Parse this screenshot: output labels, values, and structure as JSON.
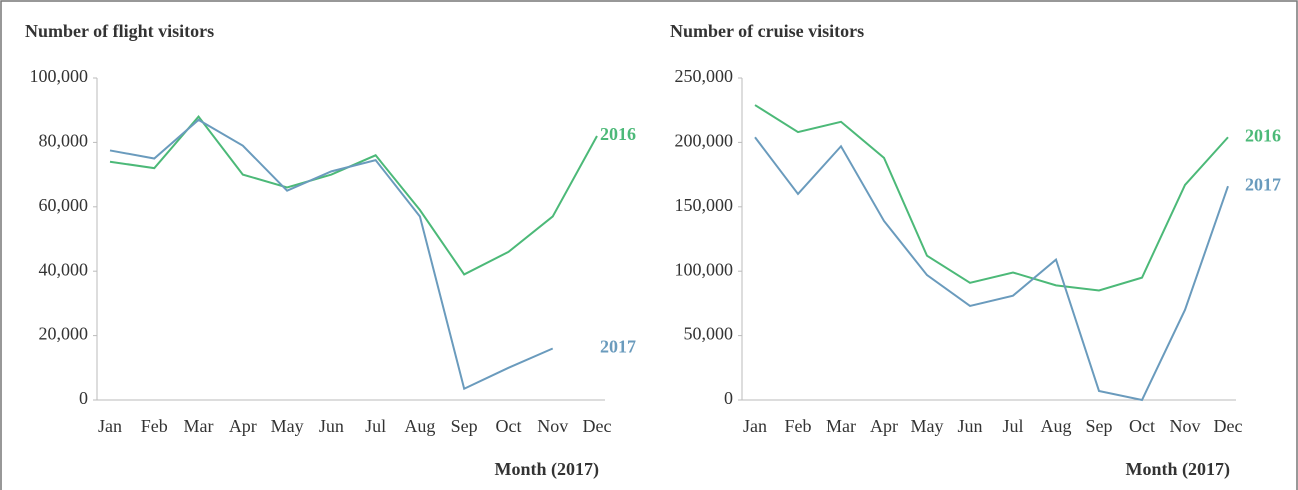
{
  "chart_data": [
    {
      "type": "line",
      "title": "Number of flight visitors",
      "x_label": "Month (2017)",
      "categories": [
        "Jan",
        "Feb",
        "Mar",
        "Apr",
        "May",
        "Jun",
        "Jul",
        "Aug",
        "Sep",
        "Oct",
        "Nov",
        "Dec"
      ],
      "ylim": [
        0,
        100000
      ],
      "yticks": [
        0,
        {
          "value": 20000,
          "label": "20,000"
        },
        {
          "value": 40000,
          "label": "40,000"
        },
        {
          "value": 60000,
          "label": "60,000"
        },
        {
          "value": 80000,
          "label": "80,000"
        },
        {
          "value": 100000,
          "label": "100,000"
        }
      ],
      "series": [
        {
          "name": "2016",
          "color": "#4cb978",
          "values": [
            74000,
            72000,
            88000,
            70000,
            66000,
            70000,
            76000,
            59000,
            39000,
            46000,
            57000,
            82000
          ]
        },
        {
          "name": "2017",
          "color": "#6a9bbd",
          "values": [
            77500,
            75000,
            87000,
            79000,
            65000,
            71000,
            74500,
            57000,
            3500,
            10000,
            16000,
            null
          ]
        }
      ]
    },
    {
      "type": "line",
      "title": "Number of cruise visitors",
      "x_label": "Month (2017)",
      "categories": [
        "Jan",
        "Feb",
        "Mar",
        "Apr",
        "May",
        "Jun",
        "Jul",
        "Aug",
        "Sep",
        "Oct",
        "Nov",
        "Dec"
      ],
      "ylim": [
        0,
        250000
      ],
      "yticks": [
        0,
        {
          "value": 50000,
          "label": "50,000"
        },
        {
          "value": 100000,
          "label": "100,000"
        },
        {
          "value": 150000,
          "label": "150,000"
        },
        {
          "value": 200000,
          "label": "200,000"
        },
        {
          "value": 250000,
          "label": "250,000"
        }
      ],
      "series": [
        {
          "name": "2016",
          "color": "#4cb978",
          "values": [
            229000,
            208000,
            216000,
            188000,
            112000,
            91000,
            99000,
            89000,
            85000,
            95000,
            167000,
            204000
          ]
        },
        {
          "name": "2017",
          "color": "#6a9bbd",
          "values": [
            204000,
            160000,
            197000,
            139000,
            97000,
            73000,
            81000,
            109000,
            7000,
            0,
            70000,
            166000
          ]
        }
      ]
    }
  ]
}
